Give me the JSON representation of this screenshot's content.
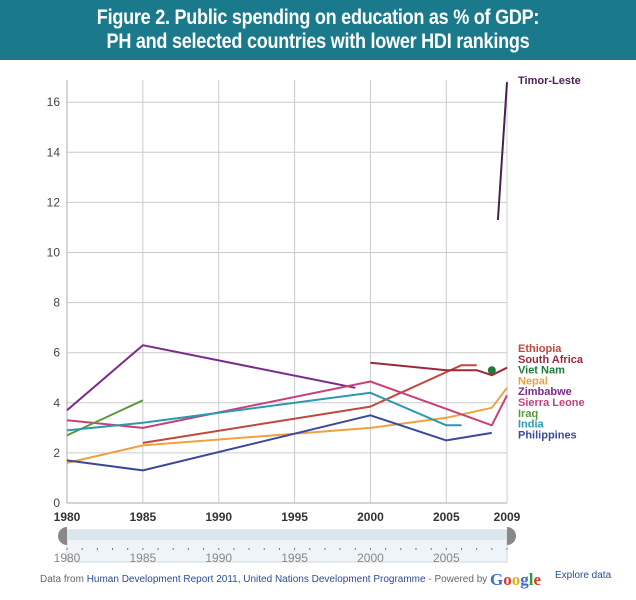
{
  "banner": {
    "line1": "Figure 2. Public spending on education as % of GDP:",
    "line2": "PH and selected countries with lower HDI rankings"
  },
  "chart_data": {
    "type": "line",
    "title": "Public spending on education as % of GDP: PH and selected countries with lower HDI rankings",
    "xlabel": "",
    "ylabel": "",
    "xlim": [
      1980,
      2009
    ],
    "ylim": [
      0,
      17.5
    ],
    "x_ticks": [
      "1980",
      "1985",
      "1990",
      "1995",
      "2000",
      "2005",
      "2009"
    ],
    "y_ticks": [
      "0",
      "2",
      "4",
      "6",
      "8",
      "10",
      "12",
      "14",
      "16"
    ],
    "grid": true,
    "legend_position": "right (labels at line ends)",
    "series": [
      {
        "name": "Timor-Leste",
        "color": "#4a1f52",
        "points": [
          [
            2008.4,
            11.3
          ],
          [
            2009,
            16.8
          ]
        ]
      },
      {
        "name": "Ethiopia",
        "color": "#c0483c",
        "points": [
          [
            1985,
            2.4
          ],
          [
            2000,
            3.85
          ],
          [
            2006,
            5.5
          ],
          [
            2007,
            5.5
          ]
        ]
      },
      {
        "name": "South Africa",
        "color": "#9a2a3a",
        "points": [
          [
            2000,
            5.6
          ],
          [
            2005,
            5.3
          ],
          [
            2007,
            5.3
          ],
          [
            2008,
            5.1
          ],
          [
            2009,
            5.4
          ]
        ]
      },
      {
        "name": "Viet Nam",
        "color": "#1e7a3a",
        "points": [
          [
            2008,
            5.3
          ]
        ],
        "marker": true
      },
      {
        "name": "Nepal",
        "color": "#f0a040",
        "points": [
          [
            1980,
            1.6
          ],
          [
            1985,
            2.3
          ],
          [
            2000,
            3.0
          ],
          [
            2005,
            3.4
          ],
          [
            2008,
            3.8
          ],
          [
            2009,
            4.6
          ]
        ]
      },
      {
        "name": "Zimbabwe",
        "color": "#7a2a8c",
        "points": [
          [
            1980,
            3.7
          ],
          [
            1985,
            6.3
          ],
          [
            1999,
            4.6
          ]
        ]
      },
      {
        "name": "Sierra Leone",
        "color": "#c8407a",
        "points": [
          [
            1980,
            3.3
          ],
          [
            1985,
            3.0
          ],
          [
            2000,
            4.85
          ],
          [
            2008,
            3.1
          ],
          [
            2009,
            4.3
          ]
        ]
      },
      {
        "name": "Iraq",
        "color": "#5a9a3a",
        "points": [
          [
            1980,
            2.7
          ],
          [
            1985,
            4.1
          ]
        ]
      },
      {
        "name": "India",
        "color": "#2a9ab0",
        "points": [
          [
            1980,
            2.9
          ],
          [
            1985,
            3.2
          ],
          [
            2000,
            4.4
          ],
          [
            2005,
            3.1
          ],
          [
            2006,
            3.1
          ]
        ]
      },
      {
        "name": "Philippines",
        "color": "#3a4a9a",
        "points": [
          [
            1980,
            1.7
          ],
          [
            1985,
            1.3
          ],
          [
            2000,
            3.5
          ],
          [
            2005,
            2.5
          ],
          [
            2008,
            2.8
          ]
        ]
      }
    ],
    "legend": [
      {
        "name": "Timor-Leste",
        "color": "#4a1f52"
      },
      {
        "name": "Ethiopia",
        "color": "#c0483c"
      },
      {
        "name": "South Africa",
        "color": "#9a2a3a"
      },
      {
        "name": "Viet Nam",
        "color": "#1e7a3a"
      },
      {
        "name": "Nepal",
        "color": "#f0a040"
      },
      {
        "name": "Zimbabwe",
        "color": "#7a2a8c"
      },
      {
        "name": "Sierra Leone",
        "color": "#c8407a"
      },
      {
        "name": "Iraq",
        "color": "#5a9a3a"
      },
      {
        "name": "India",
        "color": "#2a9ab0"
      },
      {
        "name": "Philippines",
        "color": "#3a4a9a"
      }
    ]
  },
  "slider": {
    "range": [
      1980,
      2009
    ],
    "ticks": [
      "1980",
      "1985",
      "1990",
      "1995",
      "2000",
      "2005"
    ]
  },
  "footer": {
    "prefix": "Data from ",
    "source": "Human Development Report 2011, United Nations Development Programme",
    "powered": " - Powered by ",
    "google": [
      "G",
      "o",
      "o",
      "g",
      "l",
      "e"
    ],
    "explore": "Explore data"
  }
}
